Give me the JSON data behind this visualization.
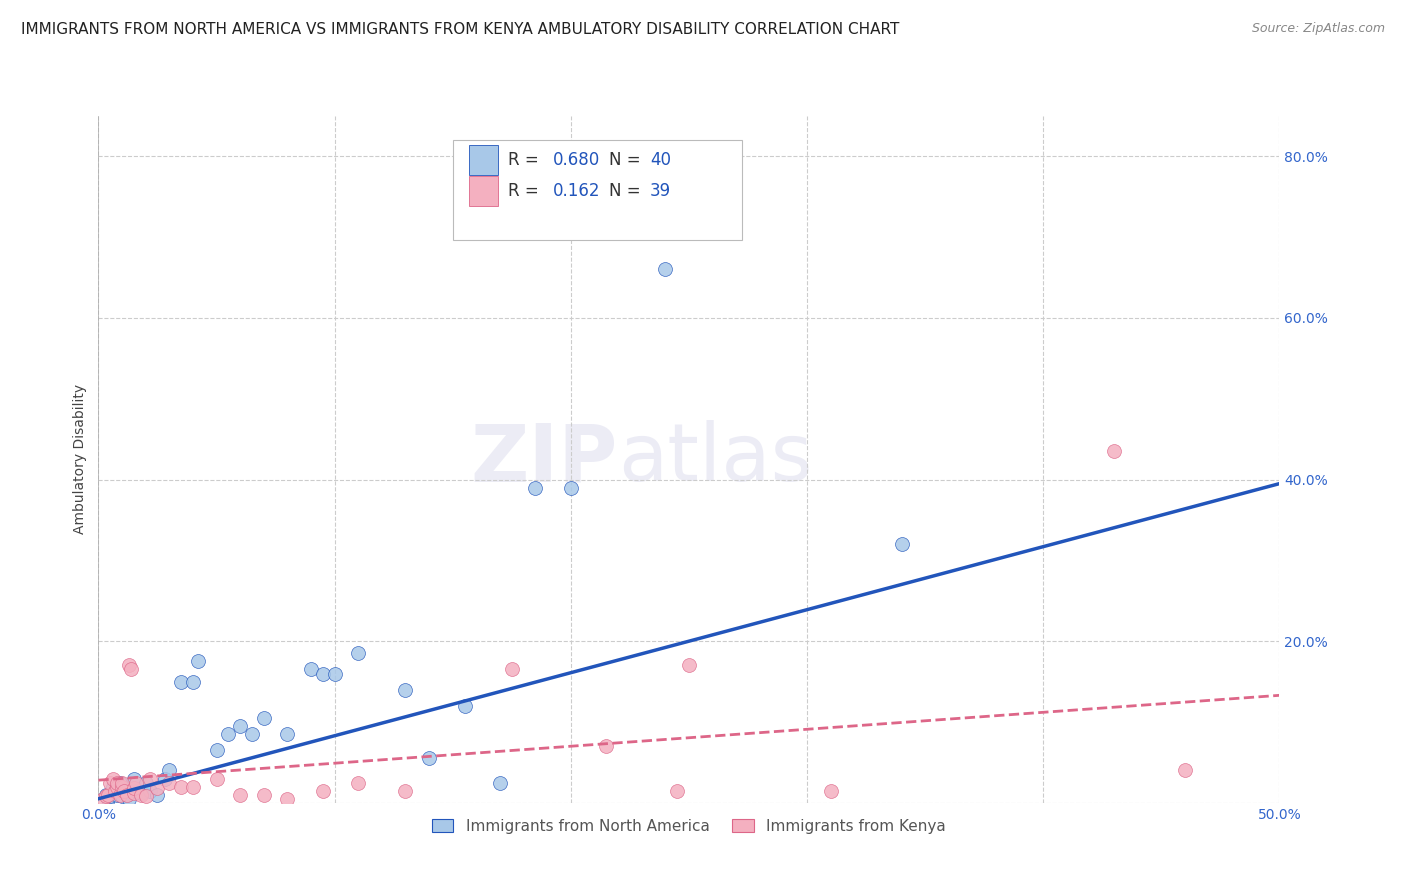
{
  "title": "IMMIGRANTS FROM NORTH AMERICA VS IMMIGRANTS FROM KENYA AMBULATORY DISABILITY CORRELATION CHART",
  "source": "Source: ZipAtlas.com",
  "xlabel_label": "Immigrants from North America",
  "ylabel_label": "Ambulatory Disability",
  "xlim": [
    0.0,
    0.5
  ],
  "ylim": [
    0.0,
    0.85
  ],
  "x_ticks": [
    0.0,
    0.1,
    0.2,
    0.3,
    0.4,
    0.5
  ],
  "x_tick_labels": [
    "0.0%",
    "",
    "",
    "",
    "",
    "50.0%"
  ],
  "y_ticks": [
    0.0,
    0.2,
    0.4,
    0.6,
    0.8
  ],
  "y_tick_labels": [
    "",
    "20.0%",
    "40.0%",
    "60.0%",
    "80.0%"
  ],
  "R_blue": 0.68,
  "N_blue": 40,
  "R_pink": 0.162,
  "N_pink": 39,
  "color_blue": "#A8C8E8",
  "color_pink": "#F4B0C0",
  "line_color_blue": "#2255BB",
  "line_color_pink": "#DD6688",
  "blue_x": [
    0.003,
    0.004,
    0.005,
    0.006,
    0.007,
    0.008,
    0.009,
    0.01,
    0.011,
    0.012,
    0.013,
    0.015,
    0.016,
    0.018,
    0.02,
    0.022,
    0.025,
    0.028,
    0.03,
    0.035,
    0.04,
    0.042,
    0.05,
    0.055,
    0.06,
    0.065,
    0.07,
    0.08,
    0.09,
    0.095,
    0.1,
    0.11,
    0.13,
    0.14,
    0.155,
    0.17,
    0.185,
    0.2,
    0.24,
    0.34
  ],
  "blue_y": [
    0.01,
    0.005,
    0.008,
    0.02,
    0.012,
    0.01,
    0.025,
    0.008,
    0.015,
    0.01,
    0.005,
    0.03,
    0.015,
    0.012,
    0.025,
    0.015,
    0.01,
    0.03,
    0.04,
    0.15,
    0.15,
    0.175,
    0.065,
    0.085,
    0.095,
    0.085,
    0.105,
    0.085,
    0.165,
    0.16,
    0.16,
    0.185,
    0.14,
    0.055,
    0.12,
    0.025,
    0.39,
    0.39,
    0.66,
    0.32
  ],
  "pink_x": [
    0.002,
    0.003,
    0.004,
    0.005,
    0.006,
    0.007,
    0.008,
    0.008,
    0.009,
    0.01,
    0.01,
    0.011,
    0.012,
    0.013,
    0.014,
    0.015,
    0.015,
    0.016,
    0.018,
    0.02,
    0.022,
    0.025,
    0.03,
    0.035,
    0.04,
    0.05,
    0.06,
    0.07,
    0.08,
    0.095,
    0.11,
    0.13,
    0.175,
    0.215,
    0.245,
    0.25,
    0.31,
    0.43,
    0.46
  ],
  "pink_y": [
    0.005,
    0.008,
    0.01,
    0.025,
    0.03,
    0.015,
    0.02,
    0.025,
    0.01,
    0.02,
    0.025,
    0.015,
    0.01,
    0.17,
    0.165,
    0.012,
    0.018,
    0.025,
    0.01,
    0.008,
    0.03,
    0.018,
    0.025,
    0.02,
    0.02,
    0.03,
    0.01,
    0.01,
    0.005,
    0.015,
    0.025,
    0.015,
    0.165,
    0.07,
    0.015,
    0.17,
    0.015,
    0.435,
    0.04
  ],
  "watermark": "ZIPatlas",
  "marker_size": 100,
  "title_fontsize": 11,
  "axis_label_fontsize": 10,
  "tick_fontsize": 10,
  "legend_fontsize": 12
}
